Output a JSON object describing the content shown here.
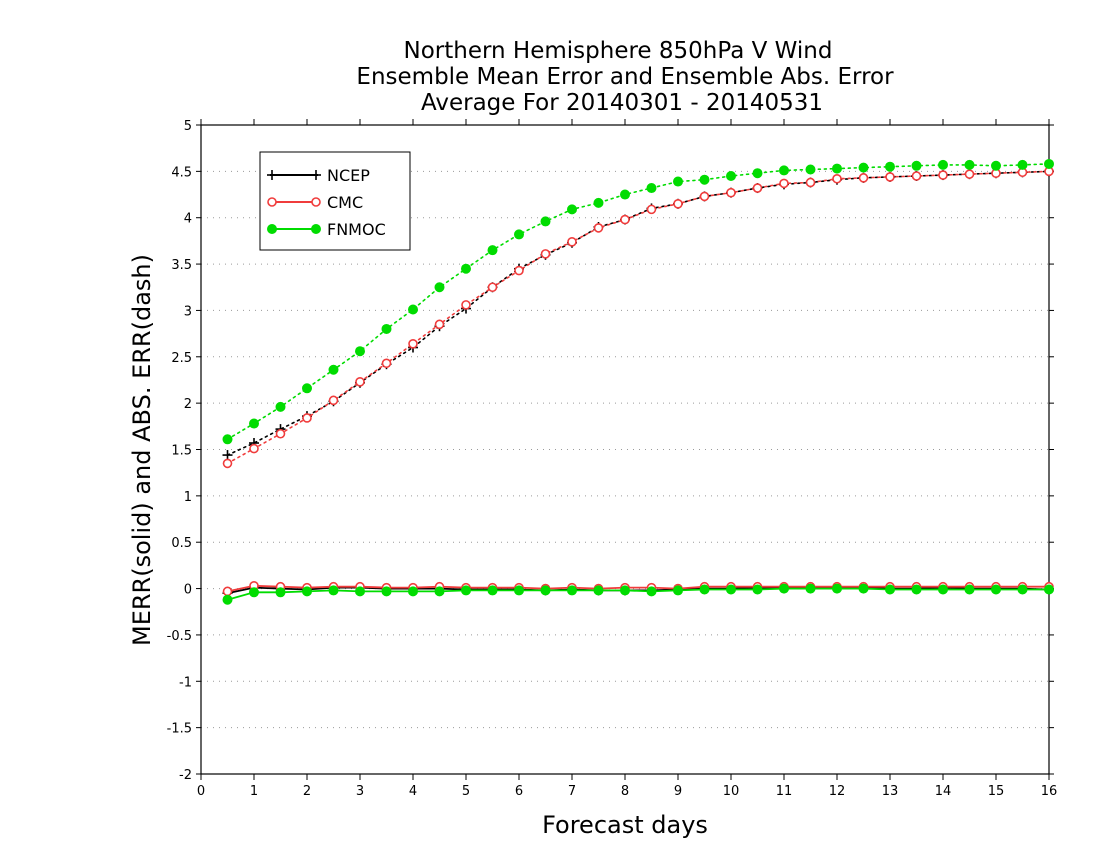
{
  "chart_data": {
    "type": "line",
    "title": [
      "Northern Hemisphere 850hPa V Wind",
      "Ensemble Mean Error and Ensemble Abs. Error",
      "Average For 20140301 - 20140531"
    ],
    "xlabel": "Forecast days",
    "ylabel": "MERR(solid) and ABS. ERR(dash)",
    "xlim": [
      0,
      16
    ],
    "ylim": [
      -2,
      5
    ],
    "xticks": [
      "0",
      "1",
      "2",
      "3",
      "4",
      "5",
      "6",
      "7",
      "8",
      "9",
      "10",
      "11",
      "12",
      "13",
      "14",
      "15",
      "16"
    ],
    "yticks": [
      "-2",
      "-1.5",
      "-1",
      "-0.5",
      "0",
      "0.5",
      "1",
      "1.5",
      "2",
      "2.5",
      "3",
      "3.5",
      "4",
      "4.5",
      "5"
    ],
    "grid": "horizontal dotted",
    "legend_position": "top-left",
    "x": [
      0.5,
      1,
      1.5,
      2,
      2.5,
      3,
      3.5,
      4,
      4.5,
      5,
      5.5,
      6,
      6.5,
      7,
      7.5,
      8,
      8.5,
      9,
      9.5,
      10,
      10.5,
      11,
      11.5,
      12,
      12.5,
      13,
      13.5,
      14,
      14.5,
      15,
      15.5,
      16
    ],
    "series": [
      {
        "name": "NCEP",
        "color": "#000000",
        "marker": "plus",
        "abs_err": [
          1.44,
          1.57,
          1.72,
          1.86,
          2.02,
          2.22,
          2.42,
          2.6,
          2.83,
          3.02,
          3.25,
          3.45,
          3.6,
          3.73,
          3.9,
          3.98,
          4.1,
          4.15,
          4.23,
          4.27,
          4.32,
          4.36,
          4.38,
          4.41,
          4.43,
          4.44,
          4.45,
          4.46,
          4.47,
          4.48,
          4.49,
          4.5
        ],
        "mean_err": [
          -0.05,
          0.01,
          0.0,
          -0.01,
          0.01,
          0.01,
          0.0,
          0.0,
          0.0,
          -0.01,
          -0.01,
          -0.01,
          -0.02,
          -0.01,
          -0.02,
          -0.02,
          -0.02,
          -0.01,
          0.0,
          0.0,
          0.01,
          0.01,
          0.01,
          0.01,
          0.01,
          0.0,
          0.0,
          0.01,
          0.0,
          0.0,
          0.0,
          -0.01
        ]
      },
      {
        "name": "CMC",
        "color": "#f03c3c",
        "marker": "open-circle",
        "abs_err": [
          1.35,
          1.51,
          1.67,
          1.84,
          2.03,
          2.23,
          2.43,
          2.64,
          2.85,
          3.06,
          3.25,
          3.43,
          3.61,
          3.74,
          3.89,
          3.98,
          4.09,
          4.15,
          4.23,
          4.27,
          4.32,
          4.37,
          4.38,
          4.42,
          4.43,
          4.44,
          4.45,
          4.46,
          4.47,
          4.48,
          4.49,
          4.5
        ],
        "mean_err": [
          -0.03,
          0.03,
          0.02,
          0.01,
          0.02,
          0.02,
          0.01,
          0.01,
          0.02,
          0.01,
          0.01,
          0.01,
          0.0,
          0.01,
          0.0,
          0.01,
          0.01,
          0.0,
          0.02,
          0.02,
          0.02,
          0.02,
          0.02,
          0.02,
          0.02,
          0.02,
          0.02,
          0.02,
          0.02,
          0.02,
          0.02,
          0.02
        ]
      },
      {
        "name": "FNMOC",
        "color": "#00dc00",
        "marker": "filled-circle",
        "abs_err": [
          1.61,
          1.78,
          1.96,
          2.16,
          2.36,
          2.56,
          2.8,
          3.01,
          3.25,
          3.45,
          3.65,
          3.82,
          3.96,
          4.09,
          4.16,
          4.25,
          4.32,
          4.39,
          4.41,
          4.45,
          4.48,
          4.51,
          4.52,
          4.53,
          4.54,
          4.55,
          4.56,
          4.57,
          4.57,
          4.56,
          4.57,
          4.58
        ],
        "mean_err": [
          -0.12,
          -0.04,
          -0.04,
          -0.03,
          -0.02,
          -0.03,
          -0.03,
          -0.03,
          -0.03,
          -0.02,
          -0.02,
          -0.02,
          -0.02,
          -0.02,
          -0.02,
          -0.02,
          -0.03,
          -0.02,
          -0.01,
          -0.01,
          -0.01,
          0.0,
          0.0,
          0.0,
          0.0,
          -0.01,
          -0.01,
          -0.01,
          -0.01,
          -0.01,
          -0.01,
          -0.01
        ]
      }
    ]
  }
}
